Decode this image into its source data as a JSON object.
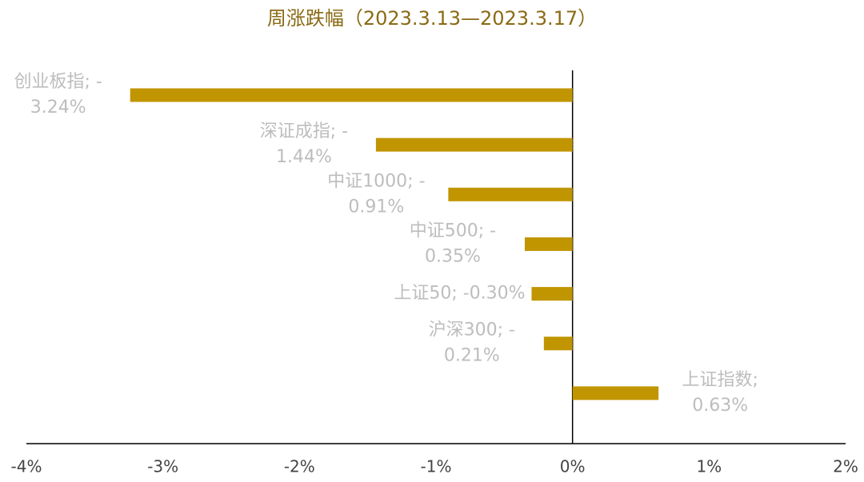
{
  "chart_data": {
    "type": "bar",
    "orientation": "horizontal",
    "title": "周涨跌幅（2023.3.13—2023.3.17）",
    "values": [
      -3.24,
      -1.44,
      -0.91,
      -0.35,
      -0.3,
      -0.21,
      0.63
    ],
    "value_labels": [
      "创业板指; -3.24%",
      "深证成指; -1.44%",
      "中证1000; -0.91%",
      "中证500; -0.35%",
      "上证50; -0.30%",
      "沪深300; -0.21%",
      "上证指数; 0.63%"
    ],
    "color": "#c19500",
    "xlim": [
      -4,
      2
    ],
    "xticks": [
      {
        "value": -4,
        "label": "-4%"
      },
      {
        "value": -3,
        "label": "-3%"
      },
      {
        "value": -2,
        "label": "-2%"
      },
      {
        "value": -1,
        "label": "-1%"
      },
      {
        "value": 0,
        "label": "0%"
      },
      {
        "value": 1,
        "label": "1%"
      },
      {
        "value": 2,
        "label": "2%"
      }
    ],
    "grid": false
  }
}
